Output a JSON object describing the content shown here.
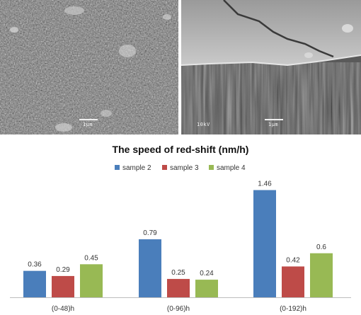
{
  "micrographs": {
    "left": {
      "scale_label": "1μm",
      "texture_color": "#7a7a7a"
    },
    "right": {
      "voltage_label": "10kV",
      "scale_label": "1μm",
      "texture_color": "#6e6e6e"
    }
  },
  "chart_data": {
    "type": "bar",
    "title": "The speed of red-shift (nm/h)",
    "categories": [
      "(0-48)h",
      "(0-96)h",
      "(0-192)h"
    ],
    "series": [
      {
        "name": "sample 2",
        "color": "#4a7ebb",
        "values": [
          0.36,
          0.79,
          1.46
        ]
      },
      {
        "name": "sample 3",
        "color": "#be4b48",
        "values": [
          0.29,
          0.25,
          0.42
        ]
      },
      {
        "name": "sample 4",
        "color": "#98b954",
        "values": [
          0.45,
          0.24,
          0.6
        ]
      }
    ],
    "value_labels": [
      [
        "0.36",
        "0.79",
        "1.46"
      ],
      [
        "0.29",
        "0.25",
        "0.42"
      ],
      [
        "0.45",
        "0.24",
        "0.6"
      ]
    ],
    "ylim": [
      0,
      1.6
    ],
    "legend_position": "top-center",
    "grid": false
  }
}
